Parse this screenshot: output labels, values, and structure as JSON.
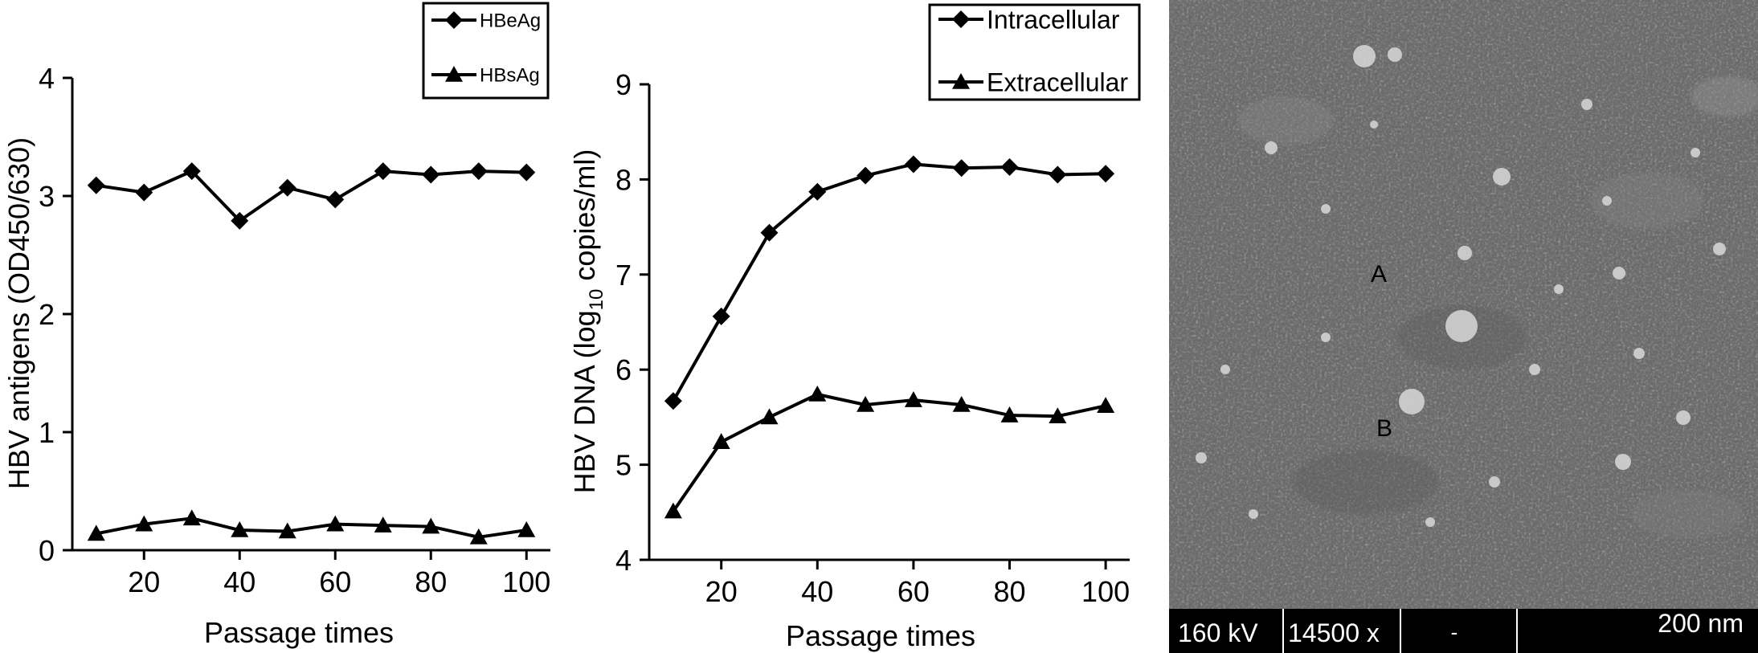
{
  "chart_data": [
    {
      "type": "line",
      "xlabel": "Passage times",
      "ylabel": "HBV antigens (OD450/630)",
      "xlim": [
        5,
        105
      ],
      "ylim": [
        0,
        4
      ],
      "xticks": [
        20,
        40,
        60,
        80,
        100
      ],
      "yticks": [
        0,
        1,
        2,
        3,
        4
      ],
      "x": [
        10,
        20,
        30,
        40,
        50,
        60,
        70,
        80,
        90,
        100
      ],
      "legend_position": "top-right",
      "series": [
        {
          "name": "HBeAg",
          "marker": "diamond",
          "values": [
            3.09,
            3.03,
            3.21,
            2.79,
            3.07,
            2.97,
            3.21,
            3.18,
            3.21,
            3.2
          ]
        },
        {
          "name": "HBsAg",
          "marker": "triangle",
          "values": [
            0.14,
            0.22,
            0.27,
            0.17,
            0.16,
            0.22,
            0.21,
            0.2,
            0.11,
            0.17
          ]
        }
      ]
    },
    {
      "type": "line",
      "xlabel": "Passage times",
      "ylabel_prefix": "HBV DNA (log",
      "ylabel_sub": "10",
      "ylabel_suffix": " copies/ml)",
      "xlim": [
        5,
        105
      ],
      "ylim": [
        4,
        9
      ],
      "xticks": [
        20,
        40,
        60,
        80,
        100
      ],
      "yticks": [
        4,
        5,
        6,
        7,
        8,
        9
      ],
      "x": [
        10,
        20,
        30,
        40,
        50,
        60,
        70,
        80,
        90,
        100
      ],
      "legend_position": "top-right",
      "series": [
        {
          "name": "Intracellular",
          "marker": "diamond",
          "values": [
            5.67,
            6.56,
            7.44,
            7.87,
            8.04,
            8.16,
            8.12,
            8.13,
            8.05,
            8.06
          ]
        },
        {
          "name": "Extracellular",
          "marker": "triangle",
          "values": [
            4.51,
            5.24,
            5.5,
            5.74,
            5.63,
            5.68,
            5.63,
            5.52,
            5.51,
            5.62
          ]
        }
      ]
    }
  ],
  "micrograph": {
    "labels": [
      "A",
      "B"
    ],
    "scale_bar": {
      "voltage": "160 kV",
      "magnification": "14500 x",
      "dash": "-",
      "scale": "200 nm"
    },
    "colors": {
      "background": "#6e6e6e",
      "bar": "#000000",
      "particle": "#d8d8d8"
    }
  }
}
